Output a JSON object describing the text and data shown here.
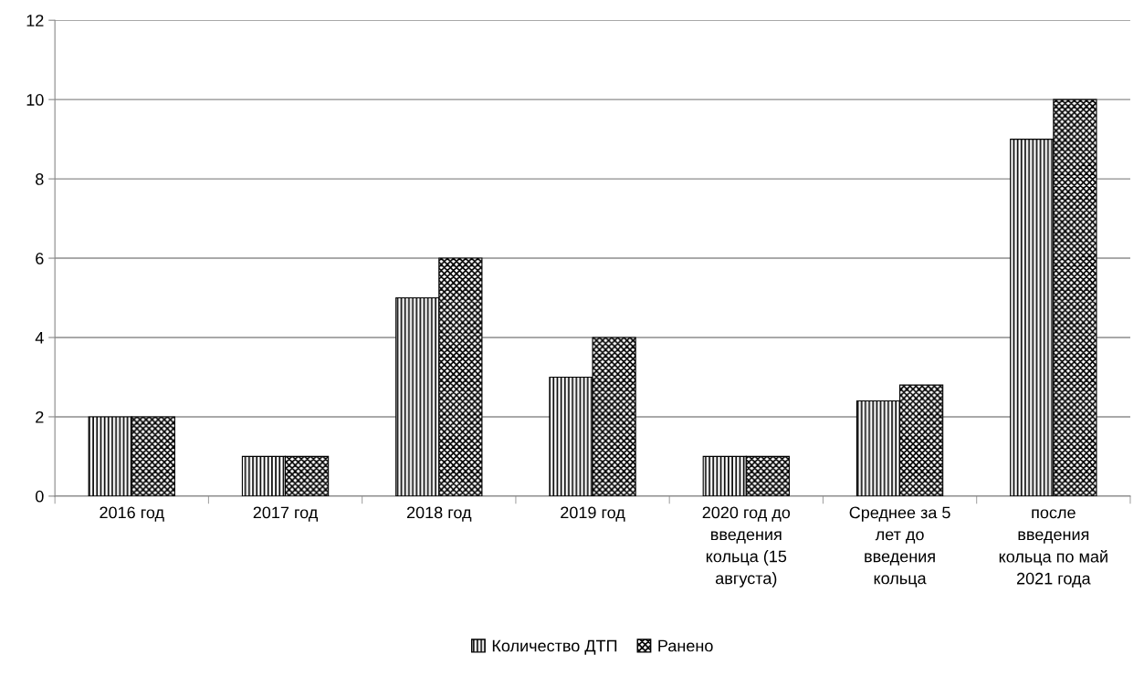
{
  "chart_data": {
    "type": "bar",
    "categories": [
      "2016 год",
      "2017 год",
      "2018 год",
      "2019 год",
      "2020 год до\nвведения\nкольца (15\nавгуста)",
      "Среднее за 5\nлет до\nвведения\nкольца",
      "после\nвведения\nкольца по май\n2021 года"
    ],
    "series": [
      {
        "name": "Количество ДТП",
        "color": "#000000",
        "values": [
          2,
          1,
          5,
          3,
          1,
          2.4,
          9
        ]
      },
      {
        "name": "Ранено",
        "color": "#000000",
        "values": [
          2,
          1,
          6,
          4,
          1,
          2.8,
          10
        ]
      }
    ],
    "ylim": [
      0,
      12
    ],
    "yticks": [
      0,
      2,
      4,
      6,
      8,
      10,
      12
    ],
    "grid": "y",
    "legend": "bottom"
  }
}
